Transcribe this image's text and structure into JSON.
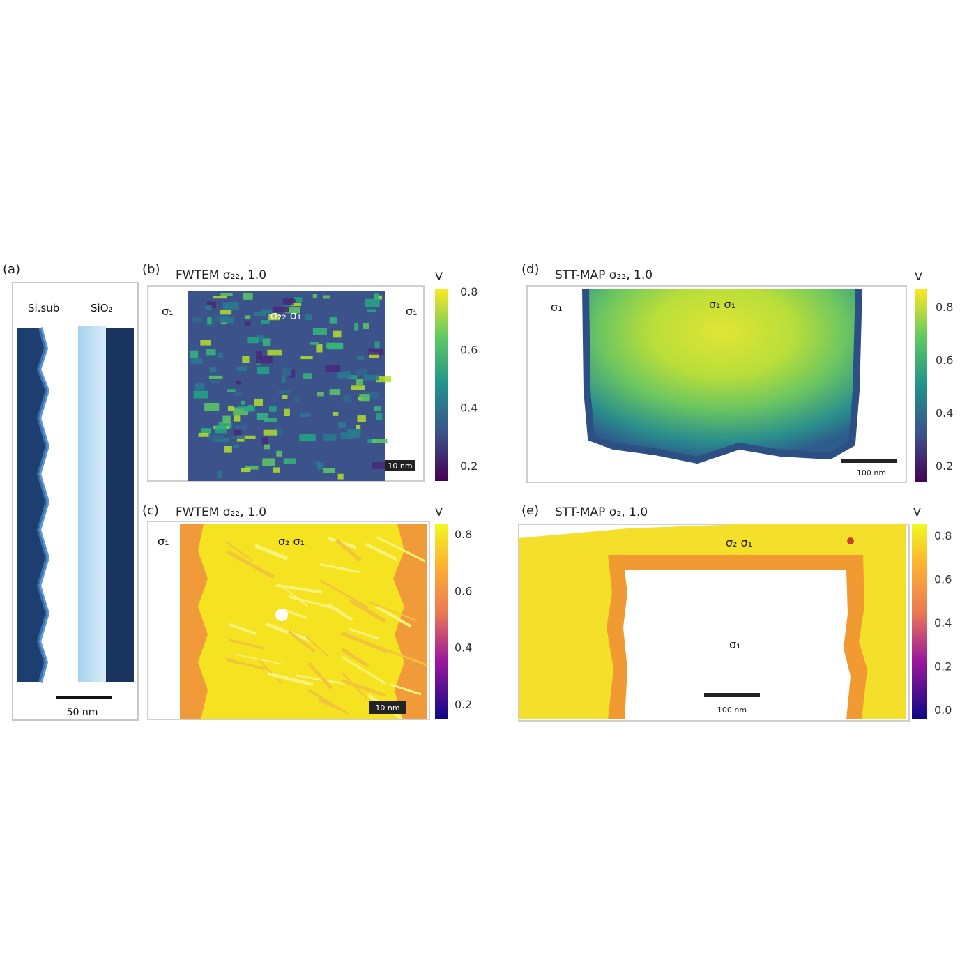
{
  "figure": {
    "panels": [
      {
        "id": "a",
        "label": "(a)",
        "top_labels": [
          "Si.sub",
          "SiO₂"
        ],
        "scale_bar": "50 nm"
      },
      {
        "id": "b",
        "label": "(b)",
        "title": "FWTEM σ₂₂, 1.0",
        "region_label": "σ₂₂ σ₁",
        "side_label_left": "σ₁",
        "side_label_right": "σ₁",
        "scale_bar": "10 nm",
        "colorbar_unit": "V",
        "colorbar_ticks": [
          "0.8",
          "0.6",
          "0.4",
          "0.2"
        ],
        "colormap": "viridis"
      },
      {
        "id": "c",
        "label": "(c)",
        "title": "FWTEM σ₂₂, 1.0",
        "region_label": "σ₂ σ₁",
        "side_label_left": "σ₁",
        "scale_bar": "10 nm",
        "colorbar_unit": "V",
        "colorbar_ticks": [
          "0.8",
          "0.6",
          "0.4",
          "0.2"
        ],
        "colormap": "plasma"
      },
      {
        "id": "d",
        "label": "(d)",
        "title": "STT-MAP σ₂₂, 1.0",
        "region_label": "σ₂ σ₁",
        "side_label_left": "σ₁",
        "scale_bar": "100 nm",
        "colorbar_unit": "V",
        "colorbar_ticks": [
          "0.8",
          "0.6",
          "0.4",
          "0.2"
        ],
        "colormap": "viridis"
      },
      {
        "id": "e",
        "label": "(e)",
        "title": "STT-MAP σ₂, 1.0",
        "region_label": "σ₂ σ₁",
        "center_label": "σ₁",
        "scale_bar": "100 nm",
        "colorbar_unit": "V",
        "colorbar_ticks": [
          "0.8",
          "0.6",
          "0.4",
          "0.2",
          "0.0"
        ],
        "colormap": "plasma"
      }
    ]
  }
}
